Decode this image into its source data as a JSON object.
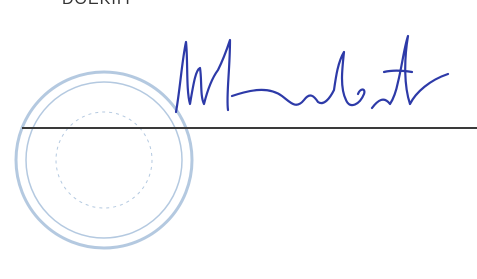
{
  "header": {
    "text": "DOEKIIY"
  }
}
